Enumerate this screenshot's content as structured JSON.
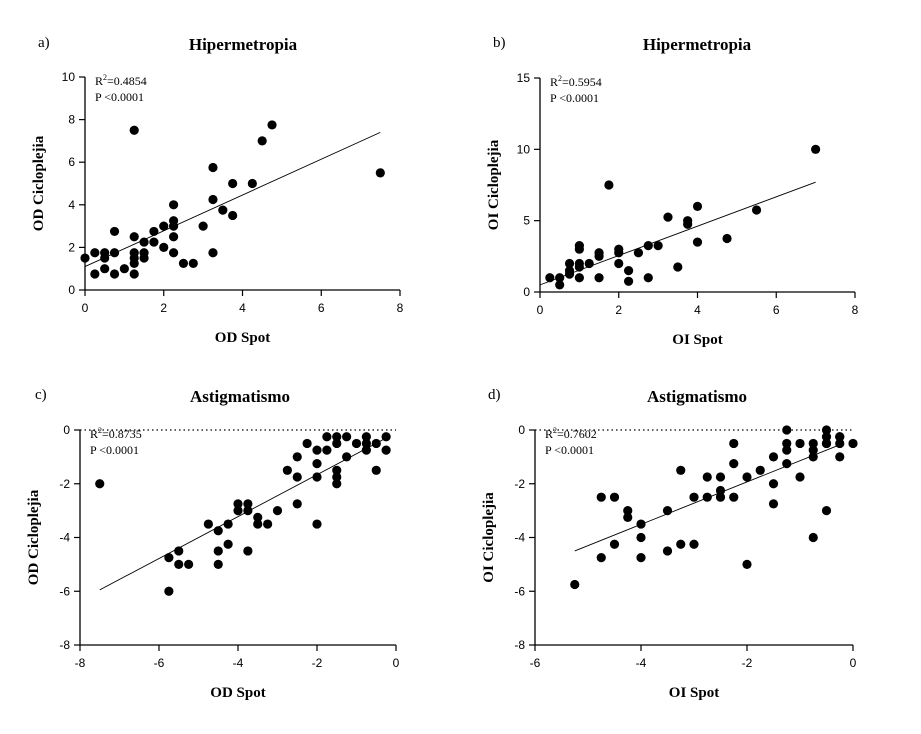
{
  "chart_data": [
    {
      "type": "scatter",
      "panel_letter": "a)",
      "title": "Hipermetropia",
      "xlabel": "OD Spot",
      "ylabel": "OD Cicloplejia",
      "xlim": [
        0,
        8
      ],
      "ylim": [
        0,
        10
      ],
      "xticks": [
        0,
        2,
        4,
        6,
        8
      ],
      "yticks": [
        0,
        2,
        4,
        6,
        8,
        10
      ],
      "r2": "R2=0.4854",
      "p": "P <0.0001",
      "zero_line": false,
      "fit": {
        "x": [
          0,
          7.5
        ],
        "y": [
          1.1,
          7.4
        ]
      },
      "x": [
        0,
        0.25,
        0.25,
        0.5,
        0.5,
        0.5,
        0.75,
        0.75,
        0.75,
        1,
        1.25,
        1.25,
        1.25,
        1.25,
        1.25,
        1.25,
        1.5,
        1.5,
        1.5,
        1.75,
        1.75,
        2,
        2,
        2.25,
        2.25,
        2.25,
        2.25,
        2.25,
        2.5,
        2.75,
        3,
        3.25,
        3.25,
        3.25,
        3.5,
        3.75,
        3.75,
        4.25,
        4.5,
        4.75,
        7.5
      ],
      "y": [
        1.5,
        1.75,
        0.75,
        1.75,
        1.5,
        1.0,
        2.75,
        1.75,
        0.75,
        1.0,
        7.5,
        2.5,
        1.75,
        1.5,
        1.25,
        0.75,
        2.25,
        1.75,
        1.5,
        2.25,
        2.75,
        3.0,
        2.0,
        4.0,
        3.25,
        3.0,
        2.5,
        1.75,
        1.25,
        1.25,
        3.0,
        5.75,
        4.25,
        1.75,
        3.75,
        5.0,
        3.5,
        5.0,
        7.0,
        7.75,
        5.5
      ]
    },
    {
      "type": "scatter",
      "panel_letter": "b)",
      "title": "Hipermetropia",
      "xlabel": "OI Spot",
      "ylabel": "OI Cicloplejia",
      "xlim": [
        0,
        8
      ],
      "ylim": [
        0,
        15
      ],
      "xticks": [
        0,
        2,
        4,
        6,
        8
      ],
      "yticks": [
        0,
        5,
        10,
        15
      ],
      "r2": "R2=0.5954",
      "p": "P <0.0001",
      "zero_line": false,
      "fit": {
        "x": [
          0,
          7
        ],
        "y": [
          0.5,
          7.7
        ]
      },
      "x": [
        0.25,
        0.5,
        0.5,
        0.75,
        0.75,
        0.75,
        1,
        1,
        1,
        1,
        1,
        1.25,
        1.5,
        1.5,
        1.5,
        1.75,
        2,
        2,
        2,
        2.25,
        2.25,
        2.5,
        2.75,
        2.75,
        3,
        3.25,
        3.5,
        3.75,
        3.75,
        4,
        4,
        4.75,
        5.5,
        7
      ],
      "y": [
        1.0,
        1.0,
        0.5,
        2.0,
        1.5,
        1.25,
        3.25,
        3.0,
        2.0,
        1.75,
        1.0,
        2.0,
        2.75,
        2.5,
        1.0,
        7.5,
        3.0,
        2.75,
        2.0,
        1.5,
        0.75,
        2.75,
        3.25,
        1.0,
        3.25,
        5.25,
        1.75,
        5.0,
        4.75,
        6.0,
        3.5,
        3.75,
        5.75,
        10.0
      ]
    },
    {
      "type": "scatter",
      "panel_letter": "c)",
      "title": "Astigmatismo",
      "xlabel": "OD Spot",
      "ylabel": "OD Cicloplejia",
      "xlim": [
        -8,
        0
      ],
      "ylim": [
        -8,
        0
      ],
      "xticks": [
        -8,
        -6,
        -4,
        -2,
        0
      ],
      "yticks": [
        -8,
        -6,
        -4,
        -2,
        0
      ],
      "r2": "R2=0.8735",
      "p": "P <0.0001",
      "zero_line": true,
      "fit": {
        "x": [
          -7.5,
          -0.25
        ],
        "y": [
          -5.95,
          -0.3
        ]
      },
      "x": [
        -7.5,
        -5.75,
        -5.75,
        -5.5,
        -5.5,
        -5.25,
        -4.75,
        -4.5,
        -4.5,
        -4.5,
        -4.25,
        -4.25,
        -4,
        -4,
        -3.75,
        -3.75,
        -3.75,
        -3.5,
        -3.5,
        -3.25,
        -3,
        -2.75,
        -2.5,
        -2.5,
        -2.5,
        -2.25,
        -2,
        -2,
        -2,
        -2,
        -1.75,
        -1.75,
        -1.5,
        -1.5,
        -1.5,
        -1.5,
        -1.5,
        -1.25,
        -1.25,
        -1,
        -0.75,
        -0.75,
        -0.75,
        -0.5,
        -0.5,
        -0.25,
        -0.25
      ],
      "y": [
        -2.0,
        -6.0,
        -4.75,
        -4.5,
        -5.0,
        -5.0,
        -3.5,
        -3.75,
        -4.5,
        -5.0,
        -3.5,
        -4.25,
        -2.75,
        -3.0,
        -2.75,
        -3.0,
        -4.5,
        -3.25,
        -3.5,
        -3.5,
        -3.0,
        -1.5,
        -1.0,
        -1.75,
        -2.75,
        -0.5,
        -0.75,
        -1.25,
        -1.75,
        -3.5,
        -0.25,
        -0.75,
        -0.25,
        -0.5,
        -1.5,
        -1.75,
        -2.0,
        -0.25,
        -1.0,
        -0.5,
        -0.25,
        -0.5,
        -0.75,
        -0.5,
        -1.5,
        -0.25,
        -0.75
      ]
    },
    {
      "type": "scatter",
      "panel_letter": "d)",
      "title": "Astigmatismo",
      "xlabel": "OI Spot",
      "ylabel": "OI Cicloplejia",
      "xlim": [
        -6,
        0
      ],
      "ylim": [
        -8,
        0
      ],
      "xticks": [
        -6,
        -4,
        -2,
        0
      ],
      "yticks": [
        -8,
        -6,
        -4,
        -2,
        0
      ],
      "r2": "R2=0.7602",
      "p": "P <0.0001",
      "zero_line": true,
      "fit": {
        "x": [
          -5.25,
          -0.25
        ],
        "y": [
          -4.5,
          -0.55
        ]
      },
      "x": [
        -5.25,
        -4.75,
        -4.75,
        -4.5,
        -4.5,
        -4.25,
        -4.25,
        -4,
        -4,
        -4,
        -3.5,
        -3.5,
        -3.25,
        -3.25,
        -3,
        -3,
        -2.75,
        -2.75,
        -2.5,
        -2.5,
        -2.5,
        -2.25,
        -2.25,
        -2.25,
        -2,
        -2,
        -1.75,
        -1.5,
        -1.5,
        -1.5,
        -1.25,
        -1.25,
        -1.25,
        -1.25,
        -1,
        -1,
        -0.75,
        -0.75,
        -0.75,
        -0.75,
        -0.5,
        -0.5,
        -0.5,
        -0.5,
        -0.5,
        -0.25,
        -0.25,
        -0.25,
        -0.25,
        0
      ],
      "y": [
        -5.75,
        -2.5,
        -4.75,
        -2.5,
        -4.25,
        -3.0,
        -3.25,
        -3.5,
        -4.0,
        -4.75,
        -3.0,
        -4.5,
        -1.5,
        -4.25,
        -2.5,
        -4.25,
        -1.75,
        -2.5,
        -1.75,
        -2.25,
        -2.5,
        -0.5,
        -1.25,
        -2.5,
        -1.75,
        -5.0,
        -1.5,
        -1.0,
        -2.0,
        -2.75,
        0.0,
        -0.5,
        -0.75,
        -1.25,
        -0.5,
        -1.75,
        -0.5,
        -0.75,
        -1.0,
        -4.0,
        0.0,
        -0.25,
        -0.5,
        -0.5,
        -3.0,
        -0.25,
        -0.5,
        -0.25,
        -1.0,
        -0.5
      ]
    }
  ]
}
